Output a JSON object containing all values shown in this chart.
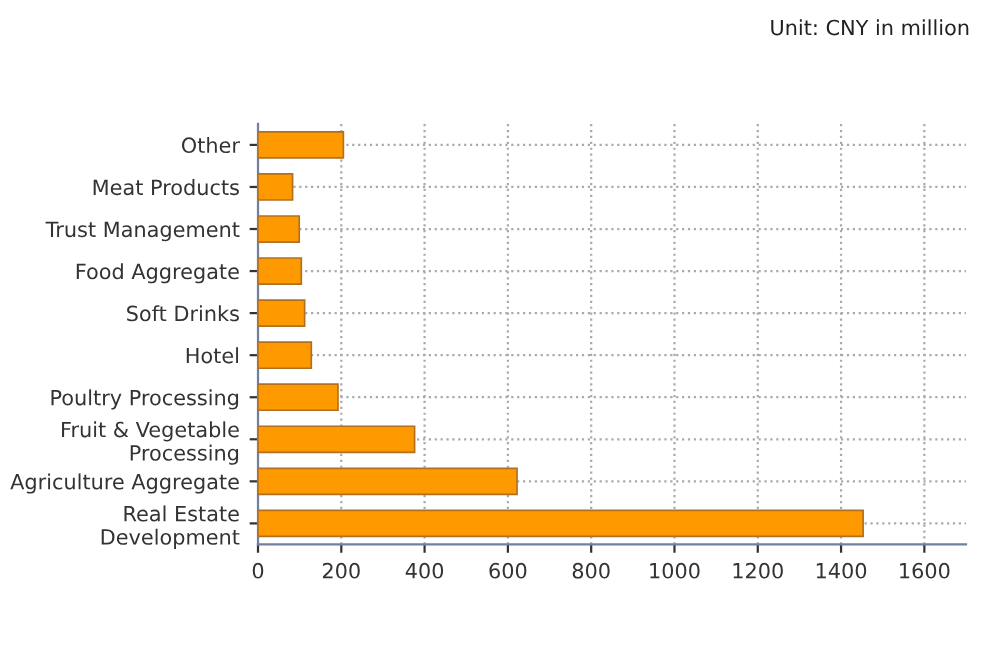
{
  "chart_data": {
    "type": "bar",
    "orientation": "horizontal",
    "categories": [
      "Other",
      "Meat Products",
      "Trust Management",
      "Food Aggregate",
      "Soft Drinks",
      "Hotel",
      "Poultry Processing",
      "Fruit & Vegetable\nProcessing",
      "Agriculture Aggregate",
      "Real Estate\nDevelopment"
    ],
    "values": [
      205,
      83,
      99,
      104,
      112,
      128,
      192,
      376,
      622,
      1453
    ],
    "color": "#ff9900",
    "xlim": [
      0,
      1700
    ],
    "xticks": [
      0,
      200,
      400,
      600,
      800,
      1000,
      1200,
      1400,
      1600
    ],
    "grid": true,
    "legend": false,
    "annotations": [
      "Unit: CNY in million"
    ]
  }
}
